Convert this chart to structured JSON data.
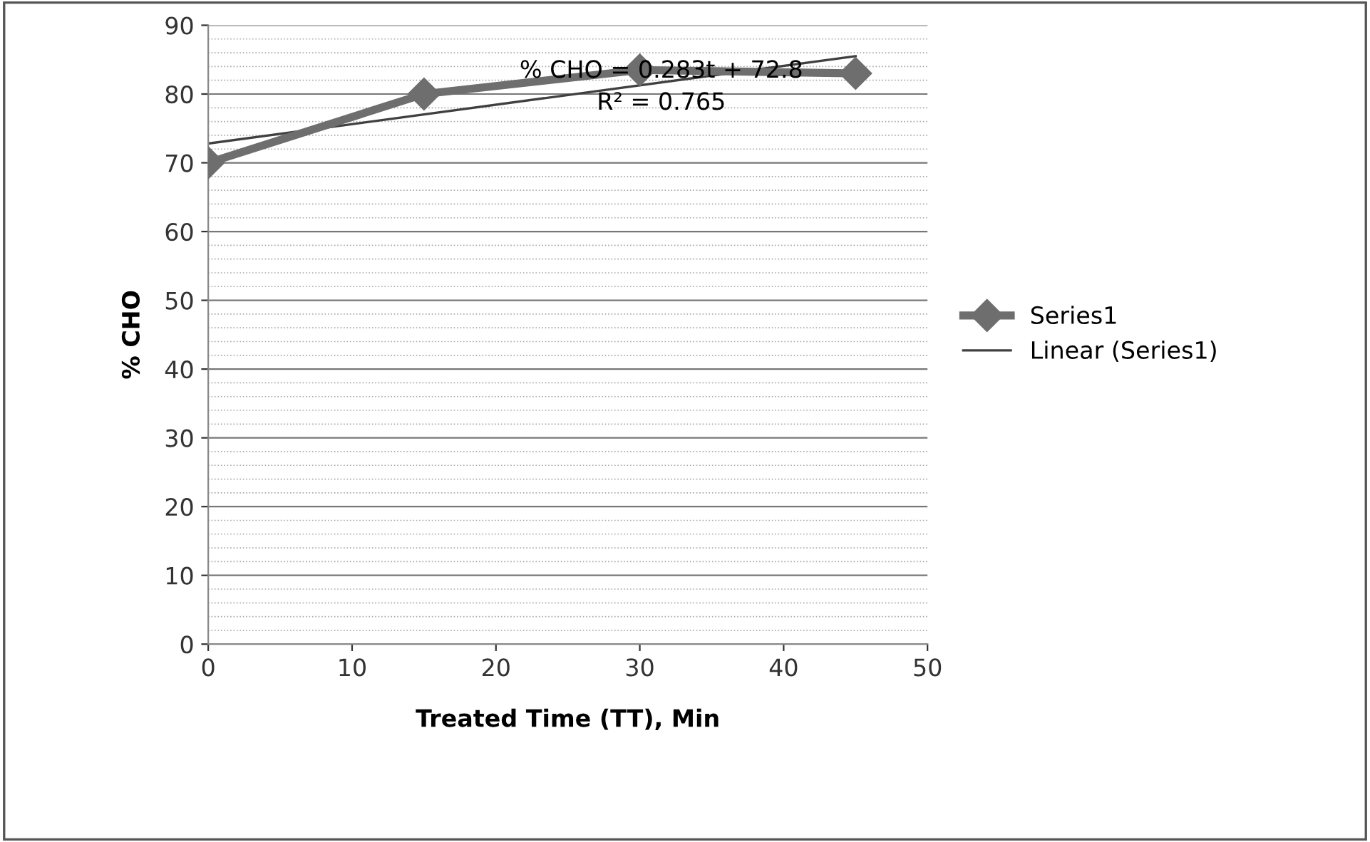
{
  "chart_data": {
    "type": "line",
    "xlabel": "Treated Time (TT), Min",
    "ylabel": "% CHO",
    "xlim": [
      0,
      50
    ],
    "xticks": [
      0,
      10,
      20,
      30,
      40,
      50
    ],
    "ylim": [
      0,
      90
    ],
    "yticks": [
      0,
      10,
      20,
      30,
      40,
      50,
      60,
      70,
      80,
      90
    ],
    "grid": "y",
    "legend": "right",
    "series": [
      {
        "name": "Series1",
        "color": "#6e6e6e",
        "marker": "diamond",
        "x": [
          0,
          15,
          30,
          45
        ],
        "values": [
          70,
          80,
          83.5,
          83
        ]
      },
      {
        "name": "Linear (Series1)",
        "type": "line",
        "color": "#404040",
        "marker": "none",
        "x": [
          0,
          45
        ],
        "values": [
          72.8,
          85.5
        ]
      }
    ],
    "annotations": [
      "% CHO = 0.283t + 72.8\nR² = 0.765"
    ]
  }
}
